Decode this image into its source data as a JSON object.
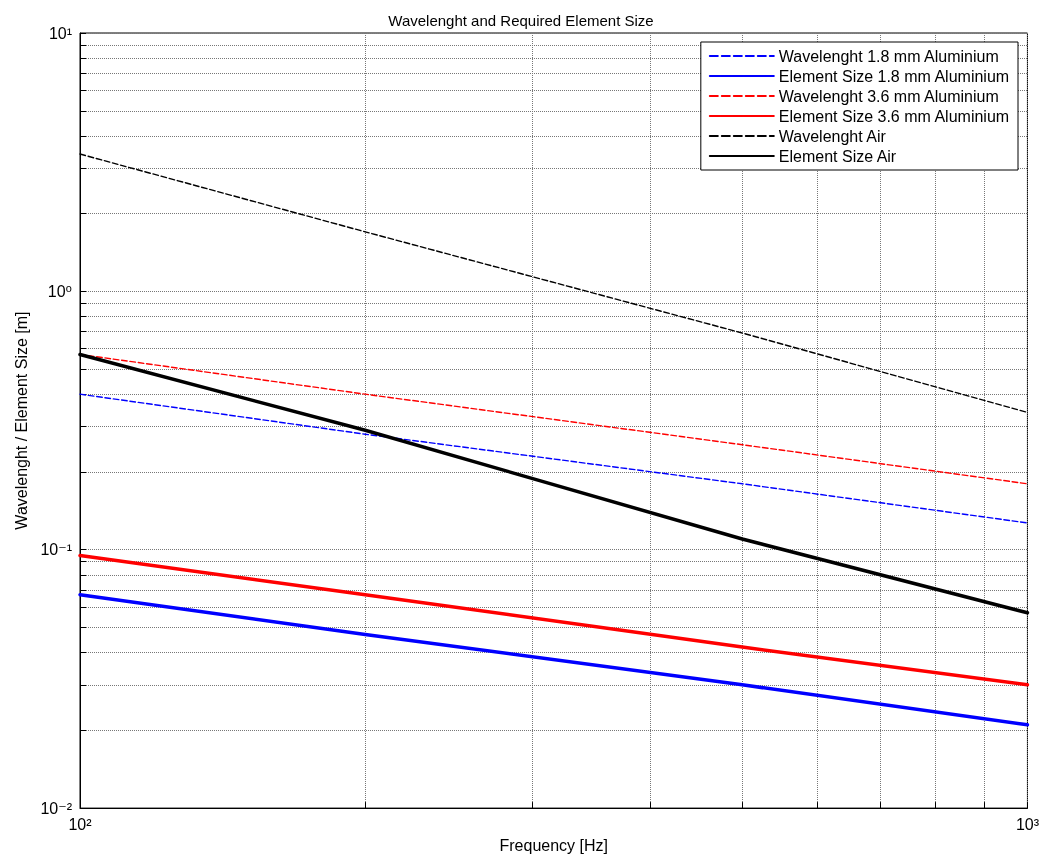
{
  "chart_data": {
    "type": "line",
    "title": "Wavelenght and Required Element Size",
    "xlabel": "Frequency [Hz]",
    "ylabel": "Wavelenght / Element Size [m]",
    "x": [
      100,
      200,
      500,
      1000
    ],
    "series": [
      {
        "name": "Wavelenght 1.8 mm Aluminium",
        "color": "#0000ff",
        "line_style": "dashed",
        "values": [
          0.4,
          0.28,
          0.18,
          0.127
        ]
      },
      {
        "name": "Element Size 1.8 mm Aluminium",
        "color": "#0000ff",
        "line_style": "solid",
        "values": [
          0.067,
          0.047,
          0.03,
          0.021
        ]
      },
      {
        "name": "Wavelenght 3.6 mm Aluminium",
        "color": "#ff0000",
        "line_style": "dashed",
        "values": [
          0.57,
          0.4,
          0.255,
          0.18
        ]
      },
      {
        "name": "Element Size 3.6 mm Aluminium",
        "color": "#ff0000",
        "line_style": "solid",
        "values": [
          0.095,
          0.067,
          0.042,
          0.03
        ]
      },
      {
        "name": "Wavelenght Air",
        "color": "#000000",
        "line_style": "dashed",
        "values": [
          3.4,
          1.7,
          0.69,
          0.34
        ]
      },
      {
        "name": "Element Size Air",
        "color": "#000000",
        "line_style": "solid",
        "values": [
          0.57,
          0.29,
          0.11,
          0.057
        ]
      }
    ],
    "log": "xy",
    "xlim": [
      100,
      1000
    ],
    "ylim": [
      0.01,
      10
    ],
    "xticks": [
      {
        "value": 100,
        "label": "10²"
      },
      {
        "value": 200,
        "label": null
      },
      {
        "value": 300,
        "label": null
      },
      {
        "value": 400,
        "label": null
      },
      {
        "value": 500,
        "label": null
      },
      {
        "value": 600,
        "label": null
      },
      {
        "value": 700,
        "label": null
      },
      {
        "value": 800,
        "label": null
      },
      {
        "value": 900,
        "label": null
      },
      {
        "value": 1000,
        "label": "10³"
      }
    ],
    "yticks": [
      {
        "value": 0.01,
        "label": "10⁻²"
      },
      {
        "value": 0.02,
        "label": null
      },
      {
        "value": 0.03,
        "label": null
      },
      {
        "value": 0.04,
        "label": null
      },
      {
        "value": 0.05,
        "label": null
      },
      {
        "value": 0.06,
        "label": null
      },
      {
        "value": 0.07,
        "label": null
      },
      {
        "value": 0.08,
        "label": null
      },
      {
        "value": 0.09,
        "label": null
      },
      {
        "value": 0.1,
        "label": "10⁻¹"
      },
      {
        "value": 0.2,
        "label": null
      },
      {
        "value": 0.3,
        "label": null
      },
      {
        "value": 0.4,
        "label": null
      },
      {
        "value": 0.5,
        "label": null
      },
      {
        "value": 0.6,
        "label": null
      },
      {
        "value": 0.7,
        "label": null
      },
      {
        "value": 0.8,
        "label": null
      },
      {
        "value": 0.9,
        "label": null
      },
      {
        "value": 1,
        "label": "10⁰"
      },
      {
        "value": 2,
        "label": null
      },
      {
        "value": 3,
        "label": null
      },
      {
        "value": 4,
        "label": null
      },
      {
        "value": 5,
        "label": null
      },
      {
        "value": 6,
        "label": null
      },
      {
        "value": 7,
        "label": null
      },
      {
        "value": 8,
        "label": null
      },
      {
        "value": 9,
        "label": null
      },
      {
        "value": 10,
        "label": "10¹"
      }
    ],
    "grid": true,
    "legend": "top right",
    "marker": "none"
  }
}
